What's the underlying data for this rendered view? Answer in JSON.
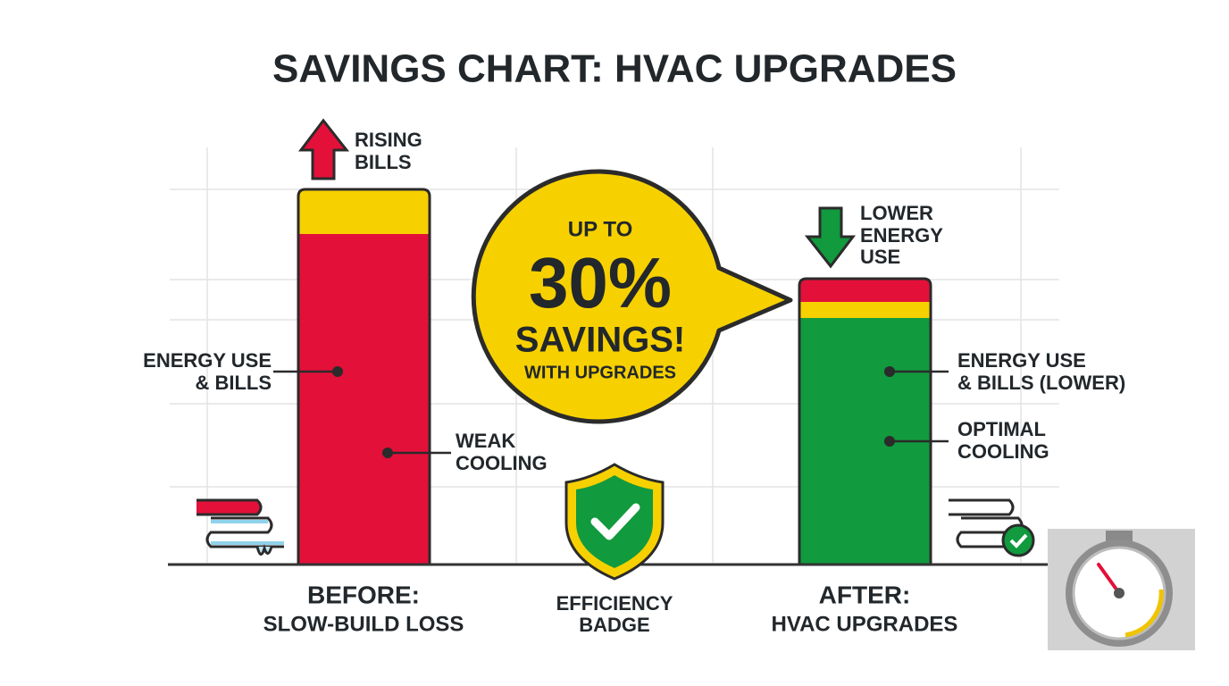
{
  "header": {
    "title": "SAVINGS CHART: HVAC UPGRADES"
  },
  "before": {
    "arrow_label": [
      "RISING",
      "BILLS"
    ],
    "label_energy": [
      "ENERGY USE",
      "& BILLS"
    ],
    "label_cooling": [
      "WEAK",
      "COOLING"
    ],
    "caption": [
      "BEFORE:",
      "SLOW-BUILD LOSS"
    ]
  },
  "callout": {
    "lines": [
      "UP TO",
      "30%",
      "SAVINGS!",
      "WITH UPGRADES"
    ]
  },
  "badge": {
    "caption": [
      "EFFICIENCY",
      "BADGE"
    ]
  },
  "after": {
    "arrow_label": [
      "LOWER",
      "ENERGY",
      "USE"
    ],
    "label_energy": [
      "ENERGY USE",
      "& BILLS (LOWER)"
    ],
    "label_cooling": [
      "OPTIMAL",
      "COOLING"
    ],
    "caption": [
      "AFTER:",
      "HVAC UPGRADES"
    ]
  }
}
